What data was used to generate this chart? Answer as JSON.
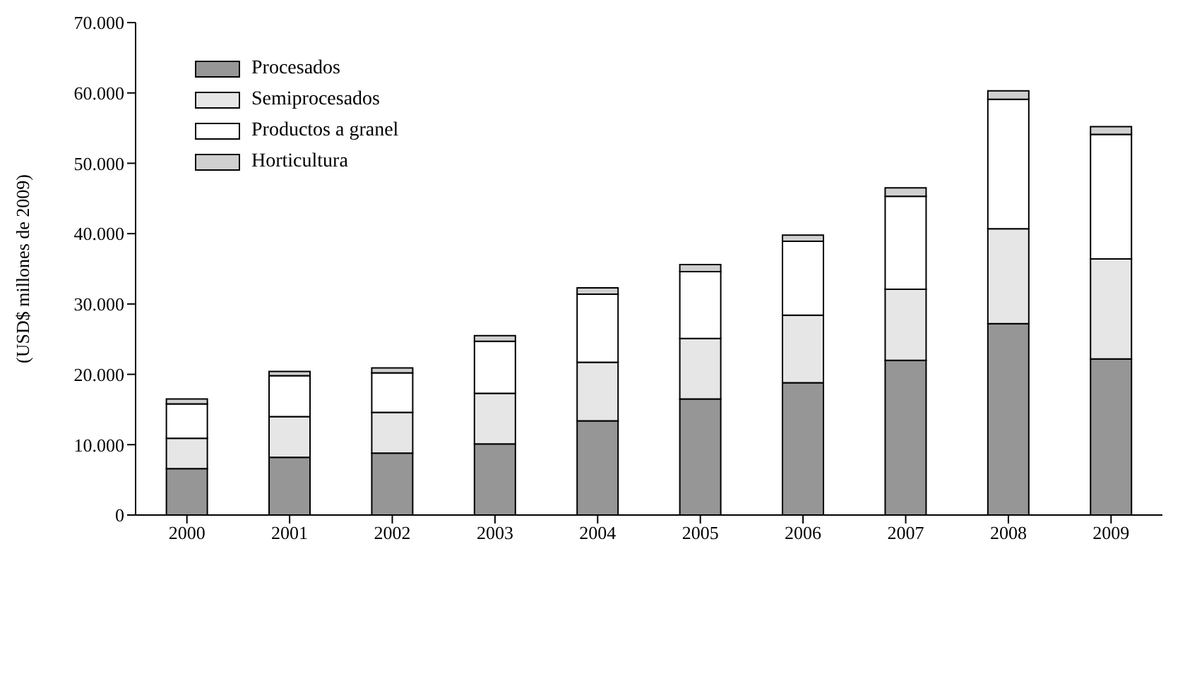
{
  "chart_data": {
    "type": "bar",
    "stacked": true,
    "ylabel": "(USD$ millones de 2009)",
    "categories": [
      "2000",
      "2001",
      "2002",
      "2003",
      "2004",
      "2005",
      "2006",
      "2007",
      "2008",
      "2009"
    ],
    "series": [
      {
        "name": "Procesados",
        "color": "#969696",
        "values": [
          6600,
          8200,
          8800,
          10100,
          13400,
          16500,
          18800,
          22000,
          27200,
          22200
        ]
      },
      {
        "name": "Semiprocesados",
        "color": "#e6e6e6",
        "values": [
          4300,
          5800,
          5800,
          7200,
          8300,
          8600,
          9600,
          10100,
          13500,
          14200
        ]
      },
      {
        "name": "Productos a granel",
        "color": "#ffffff",
        "values": [
          4900,
          5800,
          5600,
          7400,
          9700,
          9500,
          10500,
          13200,
          18400,
          17700
        ]
      },
      {
        "name": "Horticultura",
        "color": "#d0d0d0",
        "values": [
          700,
          600,
          700,
          800,
          900,
          1000,
          900,
          1200,
          1200,
          1100
        ]
      }
    ],
    "ylim": [
      0,
      70000
    ],
    "yticks": [
      {
        "value": 0,
        "label": "0"
      },
      {
        "value": 10000,
        "label": "10.000"
      },
      {
        "value": 20000,
        "label": "20.000"
      },
      {
        "value": 30000,
        "label": "30.000"
      },
      {
        "value": 40000,
        "label": "40.000"
      },
      {
        "value": 50000,
        "label": "50.000"
      },
      {
        "value": 60000,
        "label": "60.000"
      },
      {
        "value": 70000,
        "label": "70.000"
      }
    ],
    "grid": false,
    "legend": "top left"
  }
}
